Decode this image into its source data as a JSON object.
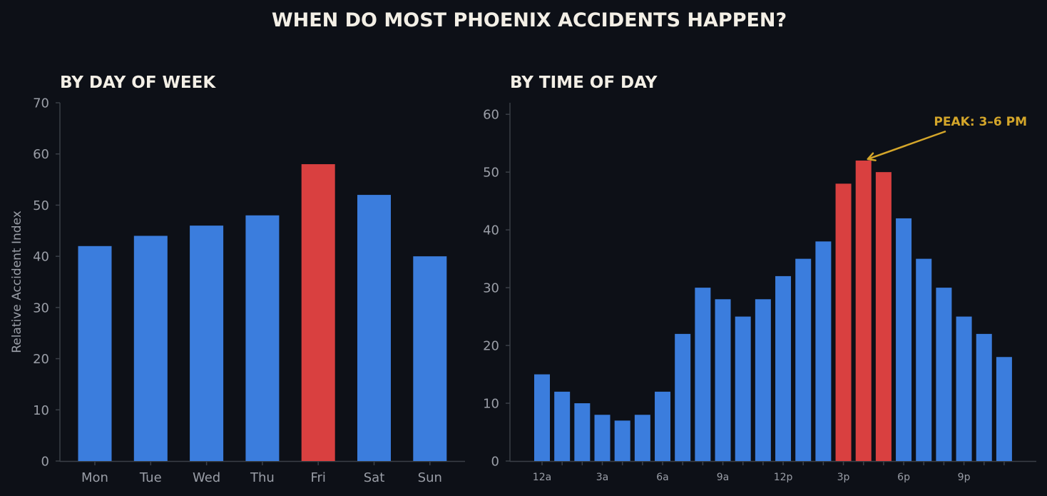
{
  "title": "WHEN DO MOST PHOENIX ACCIDENTS HAPPEN?",
  "colors": {
    "background": "#0d1017",
    "bar": "#3b7ddd",
    "highlight": "#d94040",
    "annotation": "#d4a62a",
    "title": "#f3efe6",
    "axis_text": "#9a9ea7",
    "axis_line": "#3a3f47"
  },
  "chart_data": [
    {
      "type": "bar",
      "title": "BY DAY OF WEEK",
      "xlabel": "",
      "ylabel": "Relative Accident Index",
      "categories": [
        "Mon",
        "Tue",
        "Wed",
        "Thu",
        "Fri",
        "Sat",
        "Sun"
      ],
      "values": [
        42,
        44,
        46,
        48,
        58,
        52,
        40
      ],
      "highlighted": [
        "Fri"
      ],
      "ylim": [
        0,
        70
      ],
      "yticks": [
        0,
        10,
        20,
        30,
        40,
        50,
        60,
        70
      ],
      "grid": false
    },
    {
      "type": "bar",
      "title": "BY TIME OF DAY",
      "xlabel": "",
      "ylabel": "",
      "hours": [
        0,
        1,
        2,
        3,
        4,
        5,
        6,
        7,
        8,
        9,
        10,
        11,
        12,
        13,
        14,
        15,
        16,
        17,
        18,
        19,
        20,
        21,
        22,
        23
      ],
      "values": [
        15,
        12,
        10,
        8,
        7,
        8,
        12,
        22,
        30,
        28,
        25,
        28,
        32,
        35,
        38,
        48,
        52,
        50,
        42,
        35,
        30,
        25,
        22,
        18
      ],
      "highlighted_hours": [
        15,
        16,
        17
      ],
      "xtick_labels": [
        {
          "hour": 0,
          "label": "12a"
        },
        {
          "hour": 3,
          "label": "3a"
        },
        {
          "hour": 6,
          "label": "6a"
        },
        {
          "hour": 9,
          "label": "9a"
        },
        {
          "hour": 12,
          "label": "12p"
        },
        {
          "hour": 15,
          "label": "3p"
        },
        {
          "hour": 18,
          "label": "6p"
        },
        {
          "hour": 21,
          "label": "9p"
        }
      ],
      "ylim": [
        0,
        62
      ],
      "yticks": [
        0,
        10,
        20,
        30,
        40,
        50,
        60
      ],
      "grid": false,
      "annotation": {
        "text": "PEAK: 3–6 PM",
        "target_hour": 16,
        "target_value": 52
      }
    }
  ]
}
